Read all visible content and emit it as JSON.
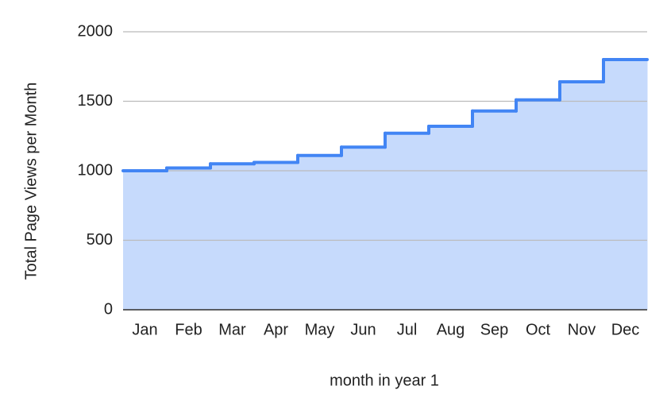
{
  "chart_data": {
    "type": "area",
    "step": true,
    "x_label": "month in year 1",
    "y_label": "Total Page Views per Month",
    "categories": [
      "Jan",
      "Feb",
      "Mar",
      "Apr",
      "May",
      "Jun",
      "Jul",
      "Aug",
      "Sep",
      "Oct",
      "Nov",
      "Dec"
    ],
    "values": [
      1000,
      1020,
      1050,
      1060,
      1110,
      1170,
      1270,
      1320,
      1430,
      1510,
      1640,
      1800
    ],
    "color": "#4285f4",
    "fill_color": "#c6dafc",
    "ylim": [
      0,
      2000
    ],
    "yticks": [
      0,
      500,
      1000,
      1500,
      2000
    ],
    "grid": true
  }
}
